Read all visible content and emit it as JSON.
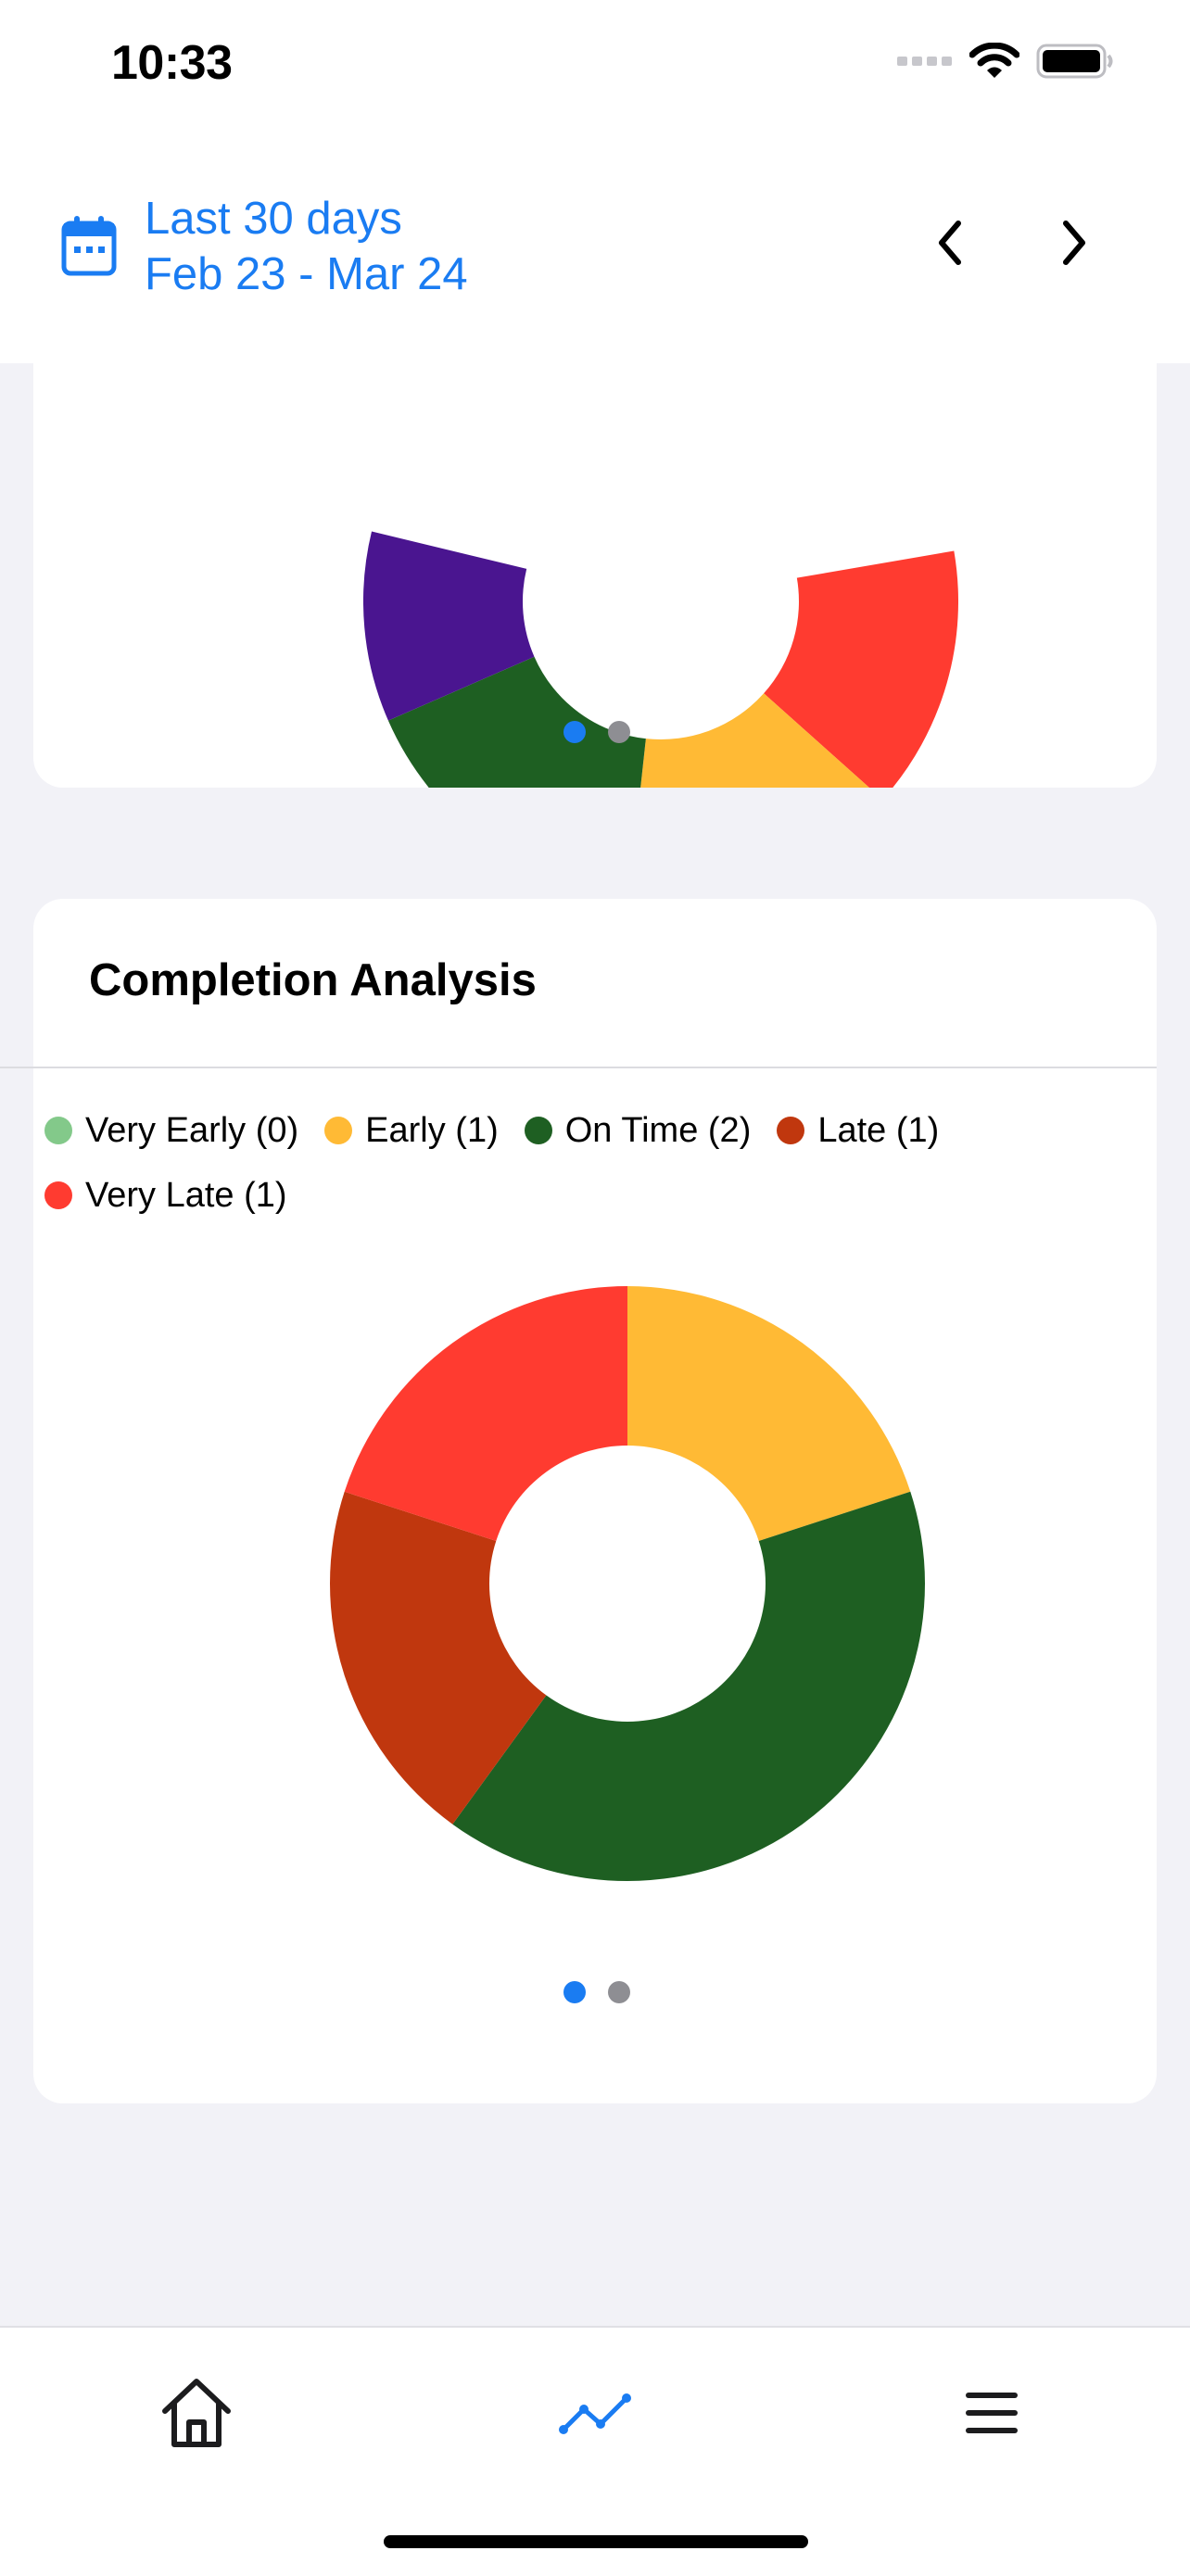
{
  "status": {
    "time": "10:33"
  },
  "header": {
    "range_label": "Last 30 days",
    "date_range": "Feb 23 - Mar 24"
  },
  "top_card": {
    "pager": {
      "count": 2,
      "active": 0
    },
    "visible_colors": [
      "#FF3B30",
      "#FFBA35",
      "#1E5F22",
      "#4A1590"
    ]
  },
  "completion_card": {
    "title": "Completion Analysis",
    "legend": [
      {
        "label": "Very Early (0)",
        "color": "#83C98A"
      },
      {
        "label": "Early (1)",
        "color": "#FFBA35"
      },
      {
        "label": "On Time (2)",
        "color": "#1E5F22"
      },
      {
        "label": "Late (1)",
        "color": "#C0370E"
      },
      {
        "label": "Very Late (1)",
        "color": "#FF3B30"
      }
    ],
    "pager": {
      "count": 2,
      "active": 0
    }
  },
  "chart_data": {
    "type": "pie",
    "donut": true,
    "categories": [
      "Very Early",
      "Early",
      "On Time",
      "Late",
      "Very Late"
    ],
    "values": [
      0,
      1,
      2,
      1,
      1
    ],
    "colors": [
      "#83C98A",
      "#FFBA35",
      "#1E5F22",
      "#C0370E",
      "#FF3B30"
    ]
  },
  "tabs": [
    {
      "name": "home",
      "icon": "home-icon",
      "active": false
    },
    {
      "name": "insights",
      "icon": "trend-line-icon",
      "active": true
    },
    {
      "name": "menu",
      "icon": "menu-icon",
      "active": false
    }
  ],
  "colors": {
    "accent": "#1A7CF2",
    "inactive_dot": "#8E8E93",
    "background": "#F2F2F7"
  }
}
